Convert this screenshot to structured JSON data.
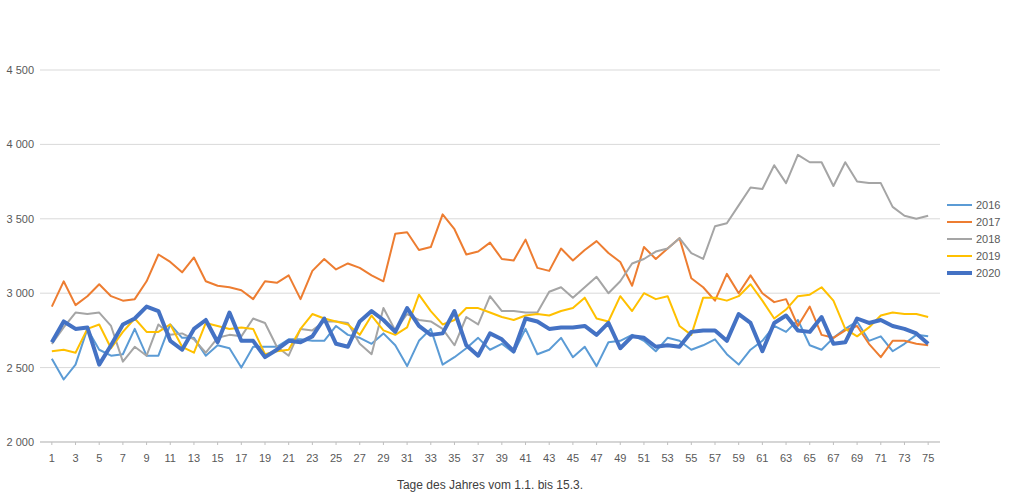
{
  "chart_data": {
    "type": "line",
    "x_label": "Tage des Jahres vom 1.1. bis 15.3.",
    "x": [
      1,
      2,
      3,
      4,
      5,
      6,
      7,
      8,
      9,
      10,
      11,
      12,
      13,
      14,
      15,
      16,
      17,
      18,
      19,
      20,
      21,
      22,
      23,
      24,
      25,
      26,
      27,
      28,
      29,
      30,
      31,
      32,
      33,
      34,
      35,
      36,
      37,
      38,
      39,
      40,
      41,
      42,
      43,
      44,
      45,
      46,
      47,
      48,
      49,
      50,
      51,
      52,
      53,
      54,
      55,
      56,
      57,
      58,
      59,
      60,
      61,
      62,
      63,
      64,
      65,
      66,
      67,
      68,
      69,
      70,
      71,
      72,
      73,
      74,
      75
    ],
    "xlim": [
      0,
      76
    ],
    "xticks": [
      1,
      3,
      5,
      7,
      9,
      11,
      13,
      15,
      17,
      19,
      21,
      23,
      25,
      27,
      29,
      31,
      33,
      35,
      37,
      39,
      41,
      43,
      45,
      47,
      49,
      51,
      53,
      55,
      57,
      59,
      61,
      63,
      65,
      67,
      69,
      71,
      73,
      75
    ],
    "ylim": [
      2000,
      4500
    ],
    "yticks": [
      {
        "value": 2000,
        "label": "2 000"
      },
      {
        "value": 2500,
        "label": "2 500"
      },
      {
        "value": 3000,
        "label": "3 000"
      },
      {
        "value": 3500,
        "label": "3 500"
      },
      {
        "value": 4000,
        "label": "4 000"
      },
      {
        "value": 4500,
        "label": "4 500"
      }
    ],
    "grid": true,
    "legend": "right",
    "series": [
      {
        "name": "2016",
        "color": "#5b9bd5",
        "values": [
          2560,
          2420,
          2520,
          2760,
          2620,
          2580,
          2590,
          2760,
          2580,
          2580,
          2790,
          2700,
          2700,
          2580,
          2650,
          2630,
          2500,
          2640,
          2640,
          2640,
          2690,
          2690,
          2680,
          2680,
          2780,
          2720,
          2700,
          2660,
          2730,
          2650,
          2510,
          2680,
          2760,
          2520,
          2570,
          2630,
          2700,
          2620,
          2660,
          2600,
          2760,
          2590,
          2620,
          2700,
          2570,
          2640,
          2510,
          2670,
          2680,
          2720,
          2680,
          2610,
          2700,
          2680,
          2620,
          2650,
          2690,
          2590,
          2520,
          2620,
          2680,
          2780,
          2740,
          2820,
          2650,
          2620,
          2700,
          2760,
          2810,
          2680,
          2710,
          2610,
          2660,
          2720,
          2710
        ]
      },
      {
        "name": "2017",
        "color": "#ed7d31",
        "values": [
          2910,
          3080,
          2920,
          2980,
          3060,
          2980,
          2950,
          2960,
          3080,
          3260,
          3210,
          3140,
          3240,
          3080,
          3050,
          3040,
          3020,
          2960,
          3080,
          3070,
          3120,
          2960,
          3150,
          3230,
          3160,
          3200,
          3170,
          3120,
          3080,
          3400,
          3410,
          3290,
          3310,
          3530,
          3430,
          3260,
          3280,
          3340,
          3230,
          3220,
          3360,
          3170,
          3150,
          3300,
          3220,
          3290,
          3350,
          3270,
          3210,
          3050,
          3310,
          3230,
          3300,
          3370,
          3100,
          3040,
          2950,
          3130,
          3000,
          3120,
          3000,
          2940,
          2960,
          2780,
          2910,
          2720,
          2700,
          2750,
          2780,
          2660,
          2570,
          2680,
          2680,
          2660,
          2650
        ]
      },
      {
        "name": "2018",
        "color": "#a5a5a5",
        "values": [
          2660,
          2770,
          2870,
          2860,
          2870,
          2780,
          2540,
          2640,
          2580,
          2790,
          2720,
          2730,
          2690,
          2600,
          2700,
          2720,
          2710,
          2830,
          2800,
          2640,
          2580,
          2760,
          2750,
          2810,
          2810,
          2800,
          2660,
          2590,
          2900,
          2750,
          2860,
          2820,
          2810,
          2760,
          2650,
          2840,
          2790,
          2980,
          2880,
          2880,
          2870,
          2870,
          3010,
          3040,
          2970,
          3040,
          3110,
          3000,
          3080,
          3200,
          3230,
          3280,
          3300,
          3370,
          3270,
          3230,
          3450,
          3470,
          3590,
          3710,
          3700,
          3860,
          3740,
          3930,
          3880,
          3880,
          3720,
          3880,
          3750,
          3740,
          3740,
          3580,
          3520,
          3500,
          3520
        ]
      },
      {
        "name": "2019",
        "color": "#ffc000",
        "values": [
          2610,
          2620,
          2600,
          2760,
          2790,
          2630,
          2740,
          2830,
          2740,
          2740,
          2790,
          2640,
          2600,
          2800,
          2780,
          2760,
          2770,
          2760,
          2590,
          2610,
          2620,
          2760,
          2860,
          2830,
          2810,
          2790,
          2720,
          2850,
          2750,
          2720,
          2770,
          2990,
          2880,
          2790,
          2820,
          2900,
          2900,
          2870,
          2840,
          2820,
          2850,
          2860,
          2850,
          2880,
          2900,
          2970,
          2830,
          2810,
          2980,
          2880,
          3000,
          2960,
          2980,
          2780,
          2720,
          2970,
          2970,
          2950,
          2980,
          3060,
          2950,
          2830,
          2890,
          2980,
          2990,
          3040,
          2950,
          2760,
          2710,
          2770,
          2850,
          2870,
          2860,
          2860,
          2840
        ]
      },
      {
        "name": "2020",
        "color": "#4472c4",
        "values": [
          2670,
          2810,
          2760,
          2770,
          2520,
          2650,
          2790,
          2830,
          2910,
          2880,
          2680,
          2620,
          2760,
          2820,
          2670,
          2870,
          2680,
          2680,
          2570,
          2620,
          2680,
          2670,
          2710,
          2830,
          2660,
          2640,
          2810,
          2880,
          2820,
          2740,
          2900,
          2780,
          2720,
          2730,
          2880,
          2650,
          2580,
          2730,
          2690,
          2610,
          2830,
          2810,
          2760,
          2770,
          2770,
          2780,
          2720,
          2800,
          2630,
          2710,
          2700,
          2640,
          2650,
          2640,
          2740,
          2750,
          2750,
          2680,
          2860,
          2800,
          2610,
          2800,
          2850,
          2750,
          2740,
          2840,
          2660,
          2670,
          2830,
          2800,
          2820,
          2780,
          2760,
          2730,
          2660
        ]
      }
    ]
  }
}
